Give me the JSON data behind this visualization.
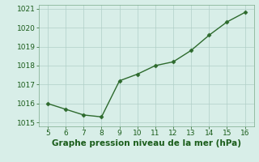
{
  "x": [
    5,
    6,
    7,
    8,
    9,
    10,
    11,
    12,
    13,
    14,
    15,
    16
  ],
  "y": [
    1016.0,
    1015.7,
    1015.4,
    1015.3,
    1017.2,
    1017.55,
    1018.0,
    1018.2,
    1018.8,
    1019.6,
    1020.3,
    1020.8
  ],
  "line_color": "#2d6a2d",
  "marker": "D",
  "marker_size": 2.5,
  "line_width": 1.0,
  "background_color": "#d8eee8",
  "grid_color": "#b0cfc8",
  "xlabel": "Graphe pression niveau de la mer (hPa)",
  "xlabel_color": "#1a5c1a",
  "xlabel_fontsize": 7.5,
  "xlim": [
    4.5,
    16.5
  ],
  "ylim": [
    1014.8,
    1021.2
  ],
  "xticks": [
    5,
    6,
    7,
    8,
    9,
    10,
    11,
    12,
    13,
    14,
    15,
    16
  ],
  "yticks": [
    1015,
    1016,
    1017,
    1018,
    1019,
    1020,
    1021
  ],
  "tick_fontsize": 6.5,
  "tick_color": "#1a5c1a",
  "spine_color": "#7aaa8a"
}
